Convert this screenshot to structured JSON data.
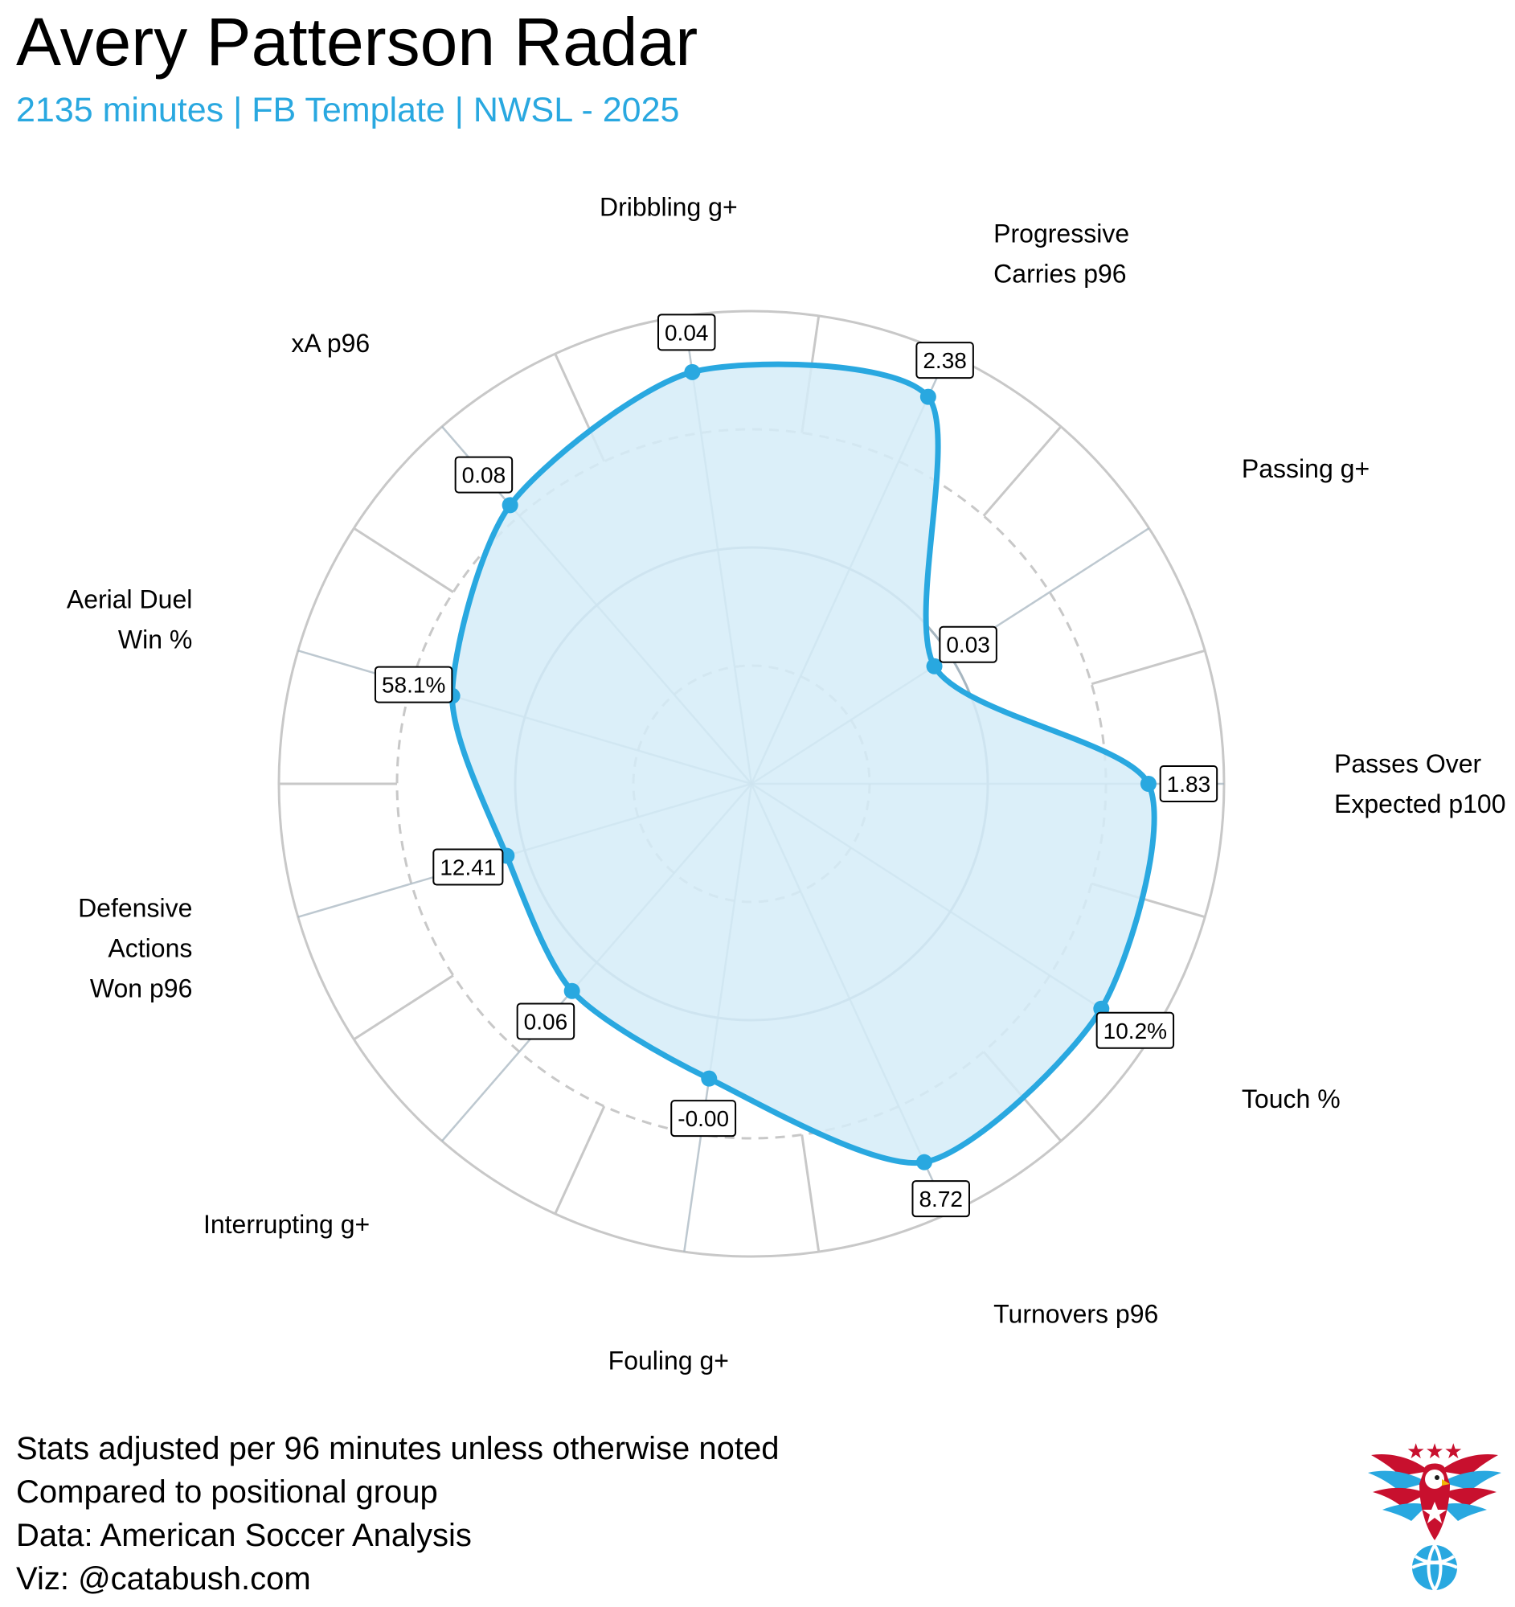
{
  "header": {
    "title": "Avery Patterson Radar",
    "subtitle": "2135 minutes | FB Template | NWSL - 2025"
  },
  "colors": {
    "accent": "#29a8e0",
    "fill": "#d5ecf8",
    "grid": "#c8c8c8",
    "inner_grid": "#a7b6c0",
    "text": "#000000"
  },
  "chart_data": {
    "type": "radar",
    "percentile_range": [
      0,
      100
    ],
    "grid_rings": [
      25,
      50,
      75,
      100
    ],
    "axes": [
      {
        "label_lines": [
          "Passes Over",
          "Expected p100"
        ],
        "value_label": "1.83",
        "percentile": 84
      },
      {
        "label_lines": [
          "Passing g+"
        ],
        "value_label": "0.03",
        "percentile": 46
      },
      {
        "label_lines": [
          "Progressive",
          "Carries p96"
        ],
        "value_label": "2.38",
        "percentile": 90
      },
      {
        "label_lines": [
          "Dribbling g+"
        ],
        "value_label": "0.04",
        "percentile": 88
      },
      {
        "label_lines": [
          "xA p96"
        ],
        "value_label": "0.08",
        "percentile": 78
      },
      {
        "label_lines": [
          "Aerial Duel",
          "Win %"
        ],
        "value_label": "58.1%",
        "percentile": 66
      },
      {
        "label_lines": [
          "Defensive",
          "Actions",
          "Won p96"
        ],
        "value_label": "12.41",
        "percentile": 54
      },
      {
        "label_lines": [
          "Interrupting g+"
        ],
        "value_label": "0.06",
        "percentile": 58
      },
      {
        "label_lines": [
          "Fouling g+"
        ],
        "value_label": "-0.00",
        "percentile": 63
      },
      {
        "label_lines": [
          "Turnovers p96"
        ],
        "value_label": "8.72",
        "percentile": 88
      },
      {
        "label_lines": [
          "Touch %"
        ],
        "value_label": "10.2%",
        "percentile": 88
      }
    ]
  },
  "footer": {
    "lines": [
      "Stats adjusted per 96 minutes unless otherwise noted",
      "Compared to positional group",
      "Data: American Soccer Analysis",
      "Viz: @catabush.com"
    ]
  },
  "logo": {
    "name": "eagle-soccer-logo",
    "stars": "★★★"
  }
}
